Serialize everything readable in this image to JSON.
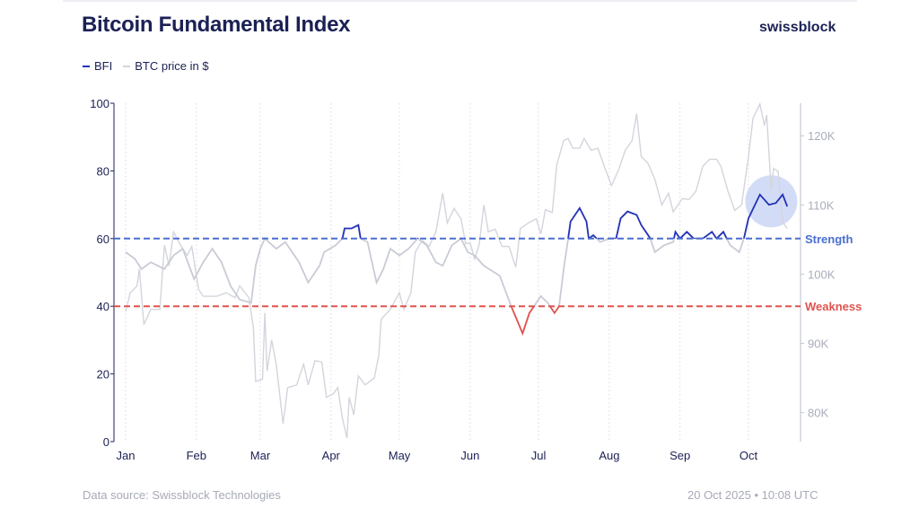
{
  "header": {
    "title": "Bitcoin Fundamental Index",
    "logo": "swissblock"
  },
  "legend": [
    {
      "label": "BFI",
      "color": "#2433b8"
    },
    {
      "label": "BTC price in $",
      "color": "#c9cbd6"
    }
  ],
  "footer": {
    "source": "Data source: Swissblock Technologies",
    "timestamp": "20 Oct 2025 • 10:08 UTC"
  },
  "chart_data": {
    "type": "line",
    "title": "Bitcoin Fundamental Index",
    "year": 2025,
    "x_ticks": [
      "Jan",
      "Feb",
      "Mar",
      "Apr",
      "May",
      "Jun",
      "Jul",
      "Aug",
      "Sep",
      "Oct"
    ],
    "y_left": {
      "ticks": [
        0,
        20,
        40,
        60,
        80,
        100
      ],
      "range": [
        0,
        100
      ]
    },
    "y_right": {
      "ticks": [
        "80K",
        "90K",
        "100K",
        "110K",
        "120K"
      ],
      "tick_values": [
        80000,
        90000,
        100000,
        110000,
        120000
      ],
      "range": [
        75800,
        124700
      ]
    },
    "grid": "vertical dotted at month starts",
    "thresholds": [
      {
        "label": "Strength",
        "value": 60,
        "color": "#4a6fd0"
      },
      {
        "label": "Weakness",
        "value": 40,
        "color": "#e0544e"
      }
    ],
    "colors": {
      "bfi_strong": "#2433b8",
      "bfi_weak": "#e0544e",
      "bfi_neutral": "#c9cbd6",
      "price": "#d3d5dd",
      "highlight": "#c8d3f5"
    },
    "highlight": {
      "date": "2025-10-11",
      "value": 71
    },
    "series": [
      {
        "name": "BFI",
        "axis": "left",
        "points": [
          [
            "2025-01-01",
            56
          ],
          [
            "2025-01-05",
            54
          ],
          [
            "2025-01-08",
            51
          ],
          [
            "2025-01-12",
            53
          ],
          [
            "2025-01-18",
            51
          ],
          [
            "2025-01-22",
            55
          ],
          [
            "2025-01-26",
            57
          ],
          [
            "2025-01-31",
            48
          ],
          [
            "2025-02-04",
            53
          ],
          [
            "2025-02-08",
            57
          ],
          [
            "2025-02-12",
            53
          ],
          [
            "2025-02-16",
            46
          ],
          [
            "2025-02-20",
            42
          ],
          [
            "2025-02-25",
            41
          ],
          [
            "2025-02-27",
            52
          ],
          [
            "2025-03-01",
            57
          ],
          [
            "2025-03-03",
            60
          ],
          [
            "2025-03-08",
            57
          ],
          [
            "2025-03-12",
            59
          ],
          [
            "2025-03-18",
            53
          ],
          [
            "2025-03-22",
            47
          ],
          [
            "2025-03-27",
            52
          ],
          [
            "2025-03-29",
            56
          ],
          [
            "2025-04-03",
            58
          ],
          [
            "2025-04-06",
            60
          ],
          [
            "2025-04-07",
            63
          ],
          [
            "2025-04-10",
            63
          ],
          [
            "2025-04-13",
            64
          ],
          [
            "2025-04-14",
            60
          ],
          [
            "2025-04-17",
            59
          ],
          [
            "2025-04-19",
            53
          ],
          [
            "2025-04-21",
            47
          ],
          [
            "2025-04-24",
            51
          ],
          [
            "2025-04-27",
            57
          ],
          [
            "2025-05-01",
            55
          ],
          [
            "2025-05-05",
            57
          ],
          [
            "2025-05-09",
            60
          ],
          [
            "2025-05-13",
            58
          ],
          [
            "2025-05-17",
            53
          ],
          [
            "2025-05-20",
            52
          ],
          [
            "2025-05-24",
            58
          ],
          [
            "2025-05-28",
            60
          ],
          [
            "2025-05-31",
            56
          ],
          [
            "2025-06-03",
            55
          ],
          [
            "2025-06-07",
            52
          ],
          [
            "2025-06-14",
            49
          ],
          [
            "2025-06-19",
            40
          ],
          [
            "2025-06-24",
            32
          ],
          [
            "2025-06-27",
            38
          ],
          [
            "2025-06-29",
            40
          ],
          [
            "2025-07-02",
            43
          ],
          [
            "2025-07-05",
            41
          ],
          [
            "2025-07-08",
            38
          ],
          [
            "2025-07-10",
            40
          ],
          [
            "2025-07-12",
            51
          ],
          [
            "2025-07-14",
            60
          ],
          [
            "2025-07-15",
            65
          ],
          [
            "2025-07-17",
            67
          ],
          [
            "2025-07-19",
            69
          ],
          [
            "2025-07-22",
            65
          ],
          [
            "2025-07-23",
            60
          ],
          [
            "2025-07-25",
            61
          ],
          [
            "2025-07-28",
            59
          ],
          [
            "2025-08-01",
            60
          ],
          [
            "2025-08-04",
            60
          ],
          [
            "2025-08-06",
            66
          ],
          [
            "2025-08-09",
            68
          ],
          [
            "2025-08-13",
            67
          ],
          [
            "2025-08-15",
            64
          ],
          [
            "2025-08-19",
            60
          ],
          [
            "2025-08-21",
            56
          ],
          [
            "2025-08-25",
            58
          ],
          [
            "2025-08-29",
            59
          ],
          [
            "2025-08-30",
            62
          ],
          [
            "2025-09-01",
            60
          ],
          [
            "2025-09-04",
            62
          ],
          [
            "2025-09-07",
            60
          ],
          [
            "2025-09-11",
            60
          ],
          [
            "2025-09-15",
            62
          ],
          [
            "2025-09-17",
            60
          ],
          [
            "2025-09-20",
            62
          ],
          [
            "2025-09-23",
            58
          ],
          [
            "2025-09-27",
            56
          ],
          [
            "2025-09-29",
            60
          ],
          [
            "2025-10-01",
            66
          ],
          [
            "2025-10-06",
            73
          ],
          [
            "2025-10-10",
            70
          ],
          [
            "2025-10-13",
            70.5
          ],
          [
            "2025-10-16",
            73
          ],
          [
            "2025-10-18",
            69.5
          ]
        ]
      },
      {
        "name": "BTC price in $",
        "axis": "right",
        "points": [
          [
            "2025-01-01",
            94600
          ],
          [
            "2025-01-03",
            97300
          ],
          [
            "2025-01-06",
            98300
          ],
          [
            "2025-01-07",
            100800
          ],
          [
            "2025-01-09",
            92700
          ],
          [
            "2025-01-12",
            94900
          ],
          [
            "2025-01-16",
            94900
          ],
          [
            "2025-01-18",
            104200
          ],
          [
            "2025-01-20",
            101200
          ],
          [
            "2025-01-22",
            106100
          ],
          [
            "2025-01-25",
            104200
          ],
          [
            "2025-01-28",
            102700
          ],
          [
            "2025-01-30",
            104000
          ],
          [
            "2025-02-02",
            97800
          ],
          [
            "2025-02-04",
            96800
          ],
          [
            "2025-02-10",
            96800
          ],
          [
            "2025-02-14",
            97300
          ],
          [
            "2025-02-18",
            96600
          ],
          [
            "2025-02-20",
            98300
          ],
          [
            "2025-02-24",
            96600
          ],
          [
            "2025-02-26",
            92200
          ],
          [
            "2025-02-27",
            84500
          ],
          [
            "2025-03-02",
            84800
          ],
          [
            "2025-03-03",
            94400
          ],
          [
            "2025-03-04",
            86000
          ],
          [
            "2025-03-06",
            90500
          ],
          [
            "2025-03-08",
            87000
          ],
          [
            "2025-03-11",
            78400
          ],
          [
            "2025-03-13",
            83600
          ],
          [
            "2025-03-17",
            84000
          ],
          [
            "2025-03-20",
            87000
          ],
          [
            "2025-03-22",
            84000
          ],
          [
            "2025-03-25",
            87500
          ],
          [
            "2025-03-28",
            87300
          ],
          [
            "2025-03-30",
            82200
          ],
          [
            "2025-04-02",
            82700
          ],
          [
            "2025-04-04",
            83600
          ],
          [
            "2025-04-06",
            79200
          ],
          [
            "2025-04-08",
            76300
          ],
          [
            "2025-04-09",
            82200
          ],
          [
            "2025-04-11",
            79700
          ],
          [
            "2025-04-13",
            85300
          ],
          [
            "2025-04-16",
            84000
          ],
          [
            "2025-04-20",
            85000
          ],
          [
            "2025-04-22",
            88400
          ],
          [
            "2025-04-23",
            93500
          ],
          [
            "2025-04-27",
            94900
          ],
          [
            "2025-05-01",
            97300
          ],
          [
            "2025-05-03",
            94900
          ],
          [
            "2025-05-06",
            97300
          ],
          [
            "2025-05-08",
            103200
          ],
          [
            "2025-05-11",
            104900
          ],
          [
            "2025-05-14",
            104000
          ],
          [
            "2025-05-17",
            106100
          ],
          [
            "2025-05-20",
            111700
          ],
          [
            "2025-05-22",
            107400
          ],
          [
            "2025-05-25",
            109500
          ],
          [
            "2025-05-28",
            108000
          ],
          [
            "2025-05-30",
            104400
          ],
          [
            "2025-06-01",
            104500
          ],
          [
            "2025-06-03",
            102200
          ],
          [
            "2025-06-05",
            104300
          ],
          [
            "2025-06-07",
            110000
          ],
          [
            "2025-06-09",
            106100
          ],
          [
            "2025-06-12",
            106500
          ],
          [
            "2025-06-15",
            104000
          ],
          [
            "2025-06-18",
            104000
          ],
          [
            "2025-06-21",
            101000
          ],
          [
            "2025-06-23",
            106600
          ],
          [
            "2025-06-27",
            107500
          ],
          [
            "2025-06-30",
            108000
          ],
          [
            "2025-07-02",
            105800
          ],
          [
            "2025-07-04",
            109300
          ],
          [
            "2025-07-07",
            108900
          ],
          [
            "2025-07-09",
            115800
          ],
          [
            "2025-07-12",
            119300
          ],
          [
            "2025-07-14",
            119600
          ],
          [
            "2025-07-16",
            118200
          ],
          [
            "2025-07-19",
            118200
          ],
          [
            "2025-07-21",
            119600
          ],
          [
            "2025-07-24",
            117900
          ],
          [
            "2025-07-27",
            118200
          ],
          [
            "2025-07-30",
            115400
          ],
          [
            "2025-08-02",
            112800
          ],
          [
            "2025-08-05",
            115000
          ],
          [
            "2025-08-08",
            117900
          ],
          [
            "2025-08-11",
            119300
          ],
          [
            "2025-08-13",
            123200
          ],
          [
            "2025-08-15",
            117000
          ],
          [
            "2025-08-18",
            116000
          ],
          [
            "2025-08-21",
            113700
          ],
          [
            "2025-08-24",
            110000
          ],
          [
            "2025-08-27",
            111700
          ],
          [
            "2025-08-29",
            109000
          ],
          [
            "2025-09-02",
            110900
          ],
          [
            "2025-09-05",
            110800
          ],
          [
            "2025-09-08",
            112000
          ],
          [
            "2025-09-11",
            115600
          ],
          [
            "2025-09-14",
            116600
          ],
          [
            "2025-09-17",
            116600
          ],
          [
            "2025-09-19",
            115500
          ],
          [
            "2025-09-22",
            112000
          ],
          [
            "2025-09-25",
            109200
          ],
          [
            "2025-09-28",
            110000
          ],
          [
            "2025-10-01",
            117000
          ],
          [
            "2025-10-03",
            122500
          ],
          [
            "2025-10-06",
            124600
          ],
          [
            "2025-10-08",
            121500
          ],
          [
            "2025-10-09",
            123000
          ],
          [
            "2025-10-11",
            112000
          ],
          [
            "2025-10-12",
            115300
          ],
          [
            "2025-10-14",
            114800
          ],
          [
            "2025-10-16",
            107500
          ],
          [
            "2025-10-18",
            106600
          ]
        ]
      }
    ]
  }
}
